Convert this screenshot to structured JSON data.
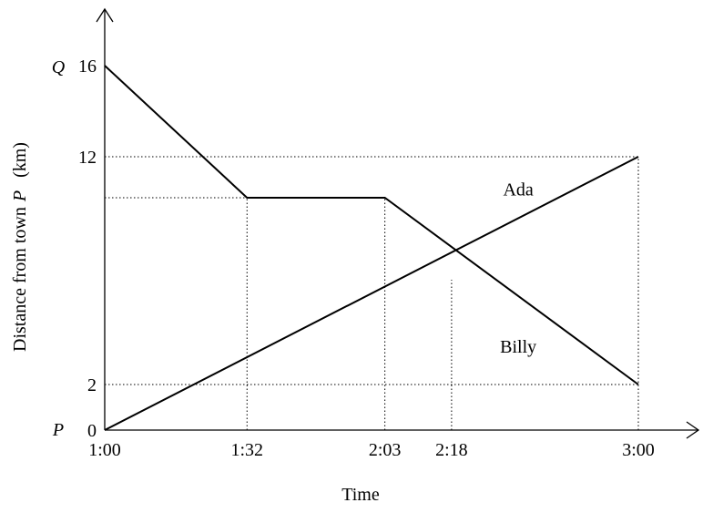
{
  "chart_data": {
    "type": "line",
    "title": "",
    "xlabel": "Time",
    "ylabel": {
      "prefix": "Distance from town",
      "italic": "P",
      "suffix": "(km)"
    },
    "y_axis_point_labels": {
      "bottom": "P",
      "top": "Q"
    },
    "x_unit": "minutes after 1:00",
    "x_ticks": [
      {
        "label": "1:00",
        "value": 0
      },
      {
        "label": "1:32",
        "value": 32
      },
      {
        "label": "2:03",
        "value": 63
      },
      {
        "label": "2:18",
        "value": 78
      },
      {
        "label": "3:00",
        "value": 120
      }
    ],
    "y_ticks": [
      {
        "label": "0",
        "value": 0
      },
      {
        "label": "2",
        "value": 2
      },
      {
        "label": "12",
        "value": 12
      },
      {
        "label": "16",
        "value": 16
      }
    ],
    "xlim": [
      0,
      120
    ],
    "ylim": [
      0,
      16
    ],
    "series": [
      {
        "name": "Ada",
        "points": [
          {
            "x": 0,
            "y": 0
          },
          {
            "x": 120,
            "y": 12
          }
        ],
        "label_at": {
          "x": 93,
          "y": 10.3
        }
      },
      {
        "name": "Billy",
        "points": [
          {
            "x": 0,
            "y": 16
          },
          {
            "x": 32,
            "y": 10.2
          },
          {
            "x": 63,
            "y": 10.2
          },
          {
            "x": 120,
            "y": 2
          }
        ],
        "label_at": {
          "x": 93,
          "y": 3.4
        }
      }
    ],
    "guides": [
      {
        "from": {
          "x": 0,
          "y": 12
        },
        "to": {
          "x": 120,
          "y": 12
        }
      },
      {
        "from": {
          "x": 0,
          "y": 10.2
        },
        "to": {
          "x": 63,
          "y": 10.2
        }
      },
      {
        "from": {
          "x": 0,
          "y": 2
        },
        "to": {
          "x": 120,
          "y": 2
        }
      },
      {
        "from": {
          "x": 32,
          "y": 0
        },
        "to": {
          "x": 32,
          "y": 10.2
        }
      },
      {
        "from": {
          "x": 63,
          "y": 0
        },
        "to": {
          "x": 63,
          "y": 10.2
        }
      },
      {
        "from": {
          "x": 78,
          "y": 0
        },
        "to": {
          "x": 78,
          "y": 6.6
        }
      },
      {
        "from": {
          "x": 120,
          "y": 0
        },
        "to": {
          "x": 120,
          "y": 12
        }
      }
    ],
    "grid": false,
    "legend": "none (series labeled directly)"
  }
}
